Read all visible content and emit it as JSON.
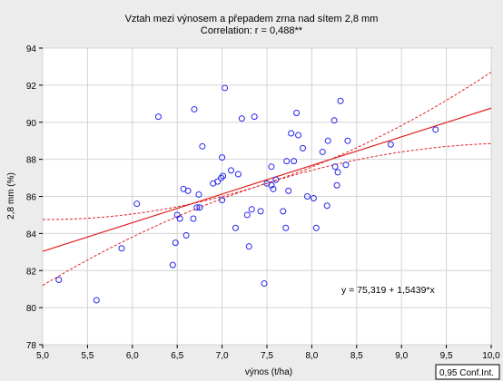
{
  "chart_data": {
    "type": "scatter",
    "title": "Vztah mezi výnosem a přepadem zrna nad sítem 2,8 mm",
    "subtitle": "Correlation: r = 0,488**",
    "xlabel": "výnos (t/ha)",
    "ylabel": "2,8 mm (%)",
    "xlim": [
      5.0,
      10.0
    ],
    "ylim": [
      78,
      94
    ],
    "x_ticks": [
      "5,0",
      "5,5",
      "6,0",
      "6,5",
      "7,0",
      "7,5",
      "8,0",
      "8,5",
      "9,0",
      "9,5",
      "10,0"
    ],
    "y_ticks": [
      "78",
      "80",
      "82",
      "84",
      "86",
      "88",
      "90",
      "92",
      "94"
    ],
    "grid": true,
    "equation": "y = 75,319 + 1,5439*x",
    "conf_label": "0,95 Conf.Int.",
    "regression": {
      "intercept": 75.319,
      "slope": 1.5439
    },
    "conf_band": {
      "lower": [
        [
          5.0,
          81.2
        ],
        [
          7.43,
          86.6
        ],
        [
          10.0,
          88.85
        ]
      ],
      "upper": [
        [
          5.0,
          84.75
        ],
        [
          7.43,
          86.6
        ],
        [
          10.0,
          92.7
        ]
      ]
    },
    "points": [
      [
        5.18,
        81.5
      ],
      [
        5.6,
        80.4
      ],
      [
        5.88,
        83.2
      ],
      [
        6.05,
        85.6
      ],
      [
        6.29,
        90.3
      ],
      [
        6.45,
        82.3
      ],
      [
        6.48,
        83.5
      ],
      [
        6.5,
        85.0
      ],
      [
        6.53,
        84.8
      ],
      [
        6.57,
        86.4
      ],
      [
        6.6,
        83.9
      ],
      [
        6.62,
        86.3
      ],
      [
        6.68,
        84.8
      ],
      [
        6.69,
        90.7
      ],
      [
        6.72,
        85.4
      ],
      [
        6.74,
        86.1
      ],
      [
        6.75,
        85.4
      ],
      [
        6.78,
        88.7
      ],
      [
        6.9,
        86.7
      ],
      [
        6.95,
        86.8
      ],
      [
        6.99,
        87.0
      ],
      [
        7.0,
        85.8
      ],
      [
        7.0,
        88.1
      ],
      [
        7.01,
        87.1
      ],
      [
        7.03,
        91.85
      ],
      [
        7.1,
        87.4
      ],
      [
        7.15,
        84.3
      ],
      [
        7.18,
        87.2
      ],
      [
        7.22,
        90.2
      ],
      [
        7.28,
        85.0
      ],
      [
        7.3,
        83.3
      ],
      [
        7.33,
        85.3
      ],
      [
        7.36,
        90.3
      ],
      [
        7.43,
        85.2
      ],
      [
        7.47,
        81.3
      ],
      [
        7.5,
        86.7
      ],
      [
        7.55,
        87.6
      ],
      [
        7.55,
        86.6
      ],
      [
        7.57,
        86.4
      ],
      [
        7.6,
        86.9
      ],
      [
        7.68,
        85.2
      ],
      [
        7.71,
        84.3
      ],
      [
        7.72,
        87.9
      ],
      [
        7.74,
        86.3
      ],
      [
        7.77,
        89.4
      ],
      [
        7.8,
        87.9
      ],
      [
        7.83,
        90.5
      ],
      [
        7.85,
        89.3
      ],
      [
        7.9,
        88.6
      ],
      [
        7.95,
        86.0
      ],
      [
        8.02,
        85.9
      ],
      [
        8.05,
        84.3
      ],
      [
        8.12,
        88.4
      ],
      [
        8.17,
        85.5
      ],
      [
        8.18,
        89.0
      ],
      [
        8.25,
        90.1
      ],
      [
        8.26,
        87.6
      ],
      [
        8.28,
        86.6
      ],
      [
        8.29,
        87.3
      ],
      [
        8.32,
        91.15
      ],
      [
        8.38,
        87.7
      ],
      [
        8.4,
        89.0
      ],
      [
        8.88,
        88.8
      ],
      [
        9.38,
        89.6
      ]
    ]
  }
}
